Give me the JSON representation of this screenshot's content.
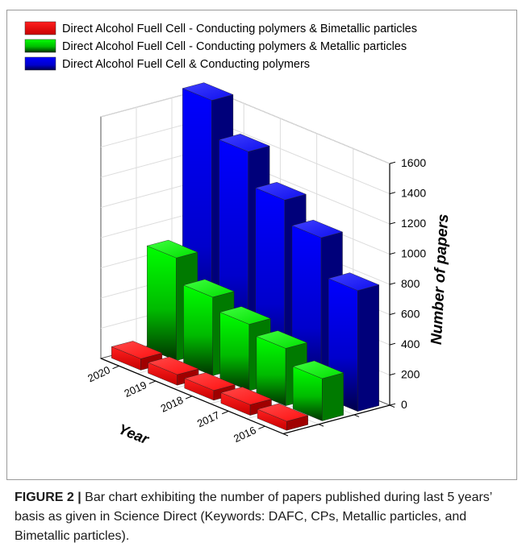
{
  "chart_data": {
    "type": "bar",
    "projection": "3d",
    "categories": [
      "2016",
      "2017",
      "2018",
      "2019",
      "2020"
    ],
    "series": [
      {
        "name": "Direct Alcohol Fuell Cell  - Conducting polymers & Bimetallic particles",
        "values": [
          60,
          70,
          65,
          70,
          75
        ],
        "color": "#ff0000"
      },
      {
        "name": "Direct Alcohol Fuell Cell  - Conducting polymers & Metallic particles",
        "values": [
          280,
          380,
          440,
          520,
          680
        ],
        "color": "#00ee00"
      },
      {
        "name": "Direct Alcohol Fuell Cell & Conducting polymers",
        "values": [
          800,
          1050,
          1200,
          1420,
          1660
        ],
        "color": "#0000ff"
      }
    ],
    "zlabel": "Number of papers",
    "ylabel": "Year",
    "zlim": [
      0,
      1600
    ],
    "z_ticks": [
      "0",
      "200",
      "400",
      "600",
      "800",
      "1000",
      "1200",
      "1400",
      "1600"
    ],
    "grid": true,
    "legend_position": "top-left"
  },
  "caption": {
    "label": "FIGURE 2 |",
    "text": " Bar chart exhibiting the number of papers published during last 5 years’ basis as given in Science Direct (Keywords: DAFC, CPs, Metallic particles, and Bimetallic particles)."
  }
}
